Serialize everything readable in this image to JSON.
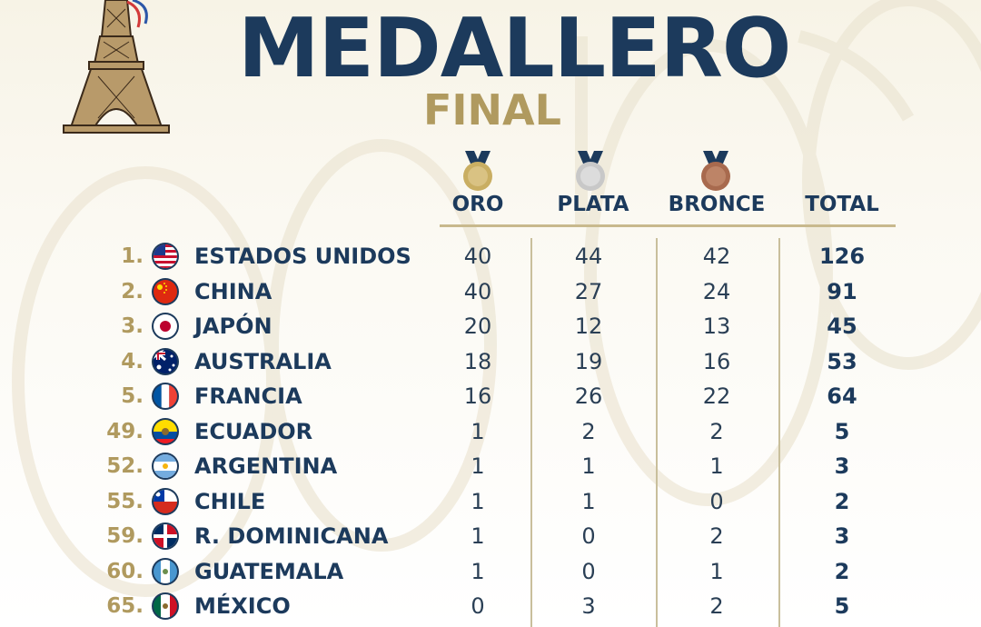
{
  "header": {
    "title": "MEDALLERO",
    "subtitle": "FINAL"
  },
  "columns": {
    "gold": "ORO",
    "silver": "PLATA",
    "bronze": "BRONCE",
    "total": "TOTAL"
  },
  "colors": {
    "navy": "#1c3a5c",
    "gold_text": "#b09a5f",
    "gold_medal": "#c9ae62",
    "silver_medal": "#c8c8c8",
    "bronze_medal": "#a86a4e"
  },
  "rows": [
    {
      "rank": "1.",
      "country": "ESTADOS UNIDOS",
      "flag": "usa-flag-icon",
      "gold": "40",
      "silver": "44",
      "bronze": "42",
      "total": "126"
    },
    {
      "rank": "2.",
      "country": "CHINA",
      "flag": "china-flag-icon",
      "gold": "40",
      "silver": "27",
      "bronze": "24",
      "total": "91"
    },
    {
      "rank": "3.",
      "country": "JAPÓN",
      "flag": "japan-flag-icon",
      "gold": "20",
      "silver": "12",
      "bronze": "13",
      "total": "45"
    },
    {
      "rank": "4.",
      "country": "AUSTRALIA",
      "flag": "australia-flag-icon",
      "gold": "18",
      "silver": "19",
      "bronze": "16",
      "total": "53"
    },
    {
      "rank": "5.",
      "country": "FRANCIA",
      "flag": "france-flag-icon",
      "gold": "16",
      "silver": "26",
      "bronze": "22",
      "total": "64"
    },
    {
      "rank": "49.",
      "country": "ECUADOR",
      "flag": "ecuador-flag-icon",
      "gold": "1",
      "silver": "2",
      "bronze": "2",
      "total": "5"
    },
    {
      "rank": "52.",
      "country": "ARGENTINA",
      "flag": "argentina-flag-icon",
      "gold": "1",
      "silver": "1",
      "bronze": "1",
      "total": "3"
    },
    {
      "rank": "55.",
      "country": "CHILE",
      "flag": "chile-flag-icon",
      "gold": "1",
      "silver": "1",
      "bronze": "0",
      "total": "2"
    },
    {
      "rank": "59.",
      "country": "R. DOMINICANA",
      "flag": "dominican-republic-flag-icon",
      "gold": "1",
      "silver": "0",
      "bronze": "2",
      "total": "3"
    },
    {
      "rank": "60.",
      "country": "GUATEMALA",
      "flag": "guatemala-flag-icon",
      "gold": "1",
      "silver": "0",
      "bronze": "1",
      "total": "2"
    },
    {
      "rank": "65.",
      "country": "MÉXICO",
      "flag": "mexico-flag-icon",
      "gold": "0",
      "silver": "3",
      "bronze": "2",
      "total": "5"
    }
  ]
}
